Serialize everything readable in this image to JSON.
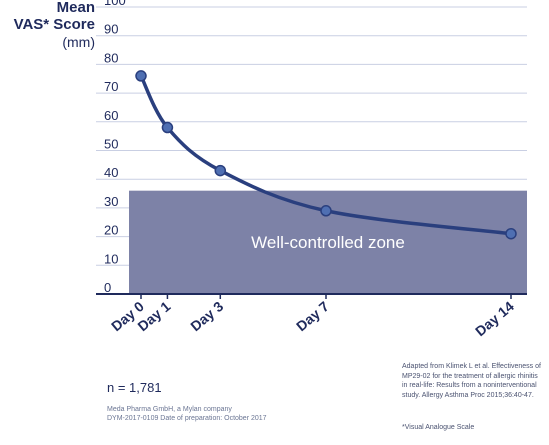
{
  "chart_data": {
    "type": "line",
    "ylabel": [
      "Mean",
      "VAS* Score",
      "(mm)"
    ],
    "ylim": [
      0,
      100
    ],
    "yticks": [
      0,
      10,
      20,
      30,
      40,
      50,
      60,
      70,
      80,
      90,
      100
    ],
    "x_ticks": [
      {
        "label": "Day 0",
        "value": 0
      },
      {
        "label": "Day 1",
        "value": 1
      },
      {
        "label": "Day 3",
        "value": 3
      },
      {
        "label": "Day 7",
        "value": 7
      },
      {
        "label": "Day 14",
        "value": 14
      }
    ],
    "series": [
      {
        "x": [
          0,
          1,
          3,
          7,
          14
        ],
        "values": [
          76,
          58,
          43,
          29,
          21
        ]
      }
    ],
    "zone": {
      "label": "Well-controlled zone",
      "y_from": 0,
      "y_to": 36
    },
    "grid": true,
    "colors": {
      "line": "#2a3f7e",
      "marker": "#4f6fb2",
      "zone": "#7d82a7",
      "axis": "#1f2a5c",
      "grid": "#c9cfe3"
    }
  },
  "sample_size": "n = 1,781",
  "footer": {
    "line1": "Meda Pharma GmbH, a Mylan company",
    "line2": "DYM-2017-0109     Date of preparation: October 2017"
  },
  "reference": {
    "text": "Adapted from Klimek L et al. Effectiveness of MP29-02 for the treatment of allergic rhinitis in real-life: Results from a noninterventional study. Allergy Asthma Proc 2015;36:40-47.",
    "note": "*Visual Analogue Scale"
  }
}
